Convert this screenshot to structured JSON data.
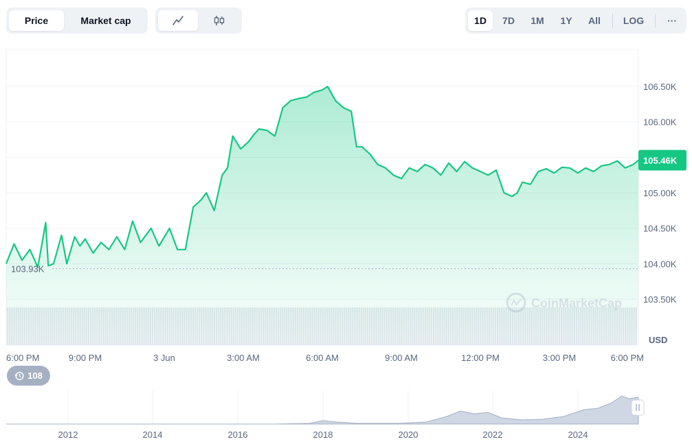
{
  "view_toggle": {
    "price": "Price",
    "market_cap": "Market cap",
    "active": "Price"
  },
  "chart_type": {
    "line_icon": "line-chart-icon",
    "candle_icon": "candlestick-icon",
    "active": "line"
  },
  "ranges": {
    "items": [
      "1D",
      "7D",
      "1M",
      "1Y",
      "All"
    ],
    "active": "1D",
    "log": "LOG",
    "more": "···"
  },
  "chart_data": {
    "type": "line",
    "currency": "USD",
    "ylim": [
      103300,
      107000
    ],
    "yticks": [
      "106.50K",
      "106.00K",
      "105.50K",
      "105.00K",
      "104.50K",
      "104.00K",
      "103.50K"
    ],
    "ytick_values": [
      106500,
      106000,
      105500,
      105000,
      104500,
      104000,
      103500
    ],
    "xticks": [
      "6:00 PM",
      "9:00 PM",
      "3 Jun",
      "3:00 AM",
      "6:00 AM",
      "9:00 AM",
      "12:00 PM",
      "3:00 PM",
      "6:00 PM"
    ],
    "x_hours": [
      0,
      3,
      6,
      9,
      12,
      15,
      18,
      21,
      24
    ],
    "open_price": 103930,
    "open_label": "103.93K",
    "last_price": 105460,
    "last_label": "105.46K",
    "series": [
      {
        "x_hours": [
          0.0,
          0.3,
          0.6,
          0.9,
          1.2,
          1.5,
          1.6,
          1.8,
          2.1,
          2.3,
          2.6,
          2.8,
          3.0,
          3.3,
          3.6,
          3.9,
          4.2,
          4.5,
          4.8,
          5.1,
          5.5,
          5.8,
          6.2,
          6.5,
          6.8,
          7.1,
          7.4,
          7.6,
          7.9,
          8.2,
          8.4,
          8.6,
          8.9,
          9.2,
          9.4,
          9.6,
          9.9,
          10.2,
          10.5,
          10.8,
          11.1,
          11.4,
          11.7,
          12.0,
          12.2,
          12.5,
          12.8,
          13.1,
          13.3,
          13.5,
          13.8,
          14.1,
          14.4,
          14.7,
          15.0,
          15.3,
          15.6,
          15.9,
          16.2,
          16.5,
          16.8,
          17.1,
          17.4,
          17.7,
          18.0,
          18.3,
          18.6,
          18.9,
          19.2,
          19.4,
          19.6,
          19.9,
          20.2,
          20.5,
          20.8,
          21.1,
          21.4,
          21.7,
          22.0,
          22.3,
          22.6,
          22.9,
          23.2,
          23.5,
          23.8,
          24.0
        ],
        "values": [
          104000,
          104280,
          104050,
          104200,
          103950,
          104580,
          103970,
          104000,
          104400,
          104000,
          104380,
          104250,
          104350,
          104150,
          104300,
          104200,
          104380,
          104200,
          104600,
          104300,
          104500,
          104250,
          104500,
          104200,
          104200,
          104800,
          104900,
          105000,
          104750,
          105250,
          105350,
          105800,
          105620,
          105720,
          105820,
          105900,
          105880,
          105800,
          106200,
          106300,
          106330,
          106350,
          106420,
          106450,
          106500,
          106300,
          106200,
          106150,
          105650,
          105650,
          105550,
          105400,
          105350,
          105250,
          105200,
          105350,
          105300,
          105400,
          105350,
          105250,
          105420,
          105300,
          105440,
          105350,
          105300,
          105250,
          105320,
          105000,
          104950,
          105000,
          105150,
          105120,
          105300,
          105340,
          105280,
          105360,
          105350,
          105280,
          105350,
          105300,
          105380,
          105400,
          105450,
          105350,
          105400,
          105460
        ]
      }
    ],
    "volume_hint": "uniform volume bars"
  },
  "watermark": "CoinMarketCap",
  "history_badge": {
    "icon": "history-icon",
    "count": "108"
  },
  "navigator": {
    "years": [
      "2012",
      "2014",
      "2016",
      "2018",
      "2020",
      "2022",
      "2024"
    ],
    "handle_icon": "pause-handle-icon"
  },
  "colors": {
    "line": "#16c784",
    "accent_badge": "#16c784",
    "grid": "#eff2f5",
    "muted_text": "#58667e"
  }
}
